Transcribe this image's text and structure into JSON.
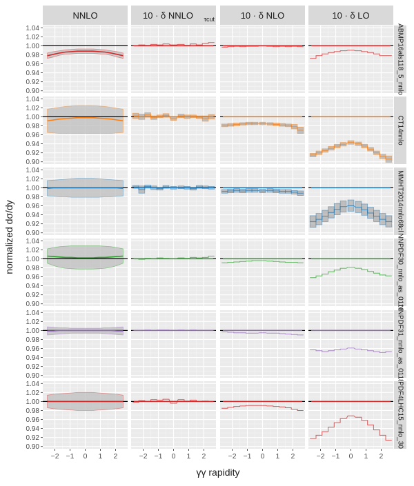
{
  "chart_data": {
    "type": "line",
    "title": "",
    "xlabel": "γγ rapidity",
    "ylabel": "normalized dσ/dy",
    "xlim": [
      -2.8,
      2.8
    ],
    "ylim": [
      0.895,
      1.045
    ],
    "x_ticks": [
      -2,
      -1,
      0,
      1,
      2
    ],
    "y_ticks": [
      0.9,
      0.92,
      0.94,
      0.96,
      0.98,
      1.0,
      1.02,
      1.04
    ],
    "x": [
      -2.5,
      -2.1,
      -1.7,
      -1.3,
      -0.9,
      -0.5,
      0,
      0.5,
      0.9,
      1.3,
      1.7,
      2.1,
      2.5
    ],
    "column_headers": [
      "NNLO",
      "10 · δ NNLO",
      "10 · δ NLO",
      "10 · δ LO"
    ],
    "column_header_subscript": "τcut",
    "reference_line": 1.0,
    "grid": true,
    "rows": [
      {
        "pdf": "ABMP16als118_5_nnlo",
        "color": "#d62728",
        "panels": [
          {
            "style": "band",
            "central": [
              0.978,
              0.981,
              0.984,
              0.986,
              0.987,
              0.988,
              0.988,
              0.988,
              0.987,
              0.986,
              0.984,
              0.981,
              0.978
            ],
            "lo": [
              0.972,
              0.975,
              0.979,
              0.981,
              0.982,
              0.983,
              0.983,
              0.983,
              0.982,
              0.981,
              0.979,
              0.975,
              0.972
            ],
            "hi": [
              0.984,
              0.987,
              0.989,
              0.991,
              0.992,
              0.993,
              0.993,
              0.993,
              0.992,
              0.991,
              0.989,
              0.987,
              0.984
            ]
          },
          {
            "style": "step",
            "central": [
              1.0,
              1.002,
              1.001,
              1.003,
              1.002,
              1.004,
              1.002,
              1.003,
              1.001,
              1.004,
              1.002,
              1.005,
              1.007
            ]
          },
          {
            "style": "step",
            "central": [
              0.997,
              0.998,
              0.999,
              0.998,
              0.999,
              0.999,
              1.0,
              0.999,
              0.998,
              0.999,
              0.998,
              0.999,
              0.998
            ]
          },
          {
            "style": "step",
            "central": [
              0.972,
              0.978,
              0.982,
              0.985,
              0.987,
              0.989,
              0.99,
              0.989,
              0.987,
              0.985,
              0.982,
              0.978,
              0.978
            ]
          }
        ]
      },
      {
        "pdf": "CT14nnlo",
        "color": "#ff7f0e",
        "panels": [
          {
            "style": "band",
            "central": [
              0.991,
              0.993,
              0.995,
              0.996,
              0.997,
              0.998,
              0.998,
              0.998,
              0.997,
              0.996,
              0.995,
              0.993,
              0.991
            ],
            "lo": [
              0.965,
              0.964,
              0.963,
              0.963,
              0.963,
              0.963,
              0.963,
              0.963,
              0.963,
              0.963,
              0.963,
              0.964,
              0.965
            ],
            "hi": [
              1.017,
              1.019,
              1.021,
              1.023,
              1.024,
              1.025,
              1.025,
              1.025,
              1.024,
              1.023,
              1.021,
              1.019,
              1.017
            ]
          },
          {
            "style": "step",
            "central": [
              1.002,
              1.0,
              1.004,
              0.998,
              1.001,
              1.003,
              0.996,
              1.002,
              1.0,
              1.001,
              0.999,
              0.996,
              1.0
            ],
            "lo": [
              0.996,
              0.994,
              0.999,
              0.994,
              0.998,
              0.999,
              0.992,
              0.998,
              0.996,
              0.998,
              0.996,
              0.99,
              0.995
            ],
            "hi": [
              1.008,
              1.006,
              1.009,
              1.002,
              1.004,
              1.007,
              1.0,
              1.006,
              1.004,
              1.004,
              1.002,
              1.002,
              1.005
            ]
          },
          {
            "style": "step",
            "central": [
              0.981,
              0.982,
              0.983,
              0.984,
              0.985,
              0.985,
              0.985,
              0.984,
              0.983,
              0.982,
              0.981,
              0.978,
              0.97
            ],
            "lo": [
              0.978,
              0.979,
              0.98,
              0.981,
              0.982,
              0.982,
              0.982,
              0.981,
              0.98,
              0.979,
              0.978,
              0.973,
              0.963
            ],
            "hi": [
              0.984,
              0.985,
              0.986,
              0.987,
              0.988,
              0.988,
              0.988,
              0.987,
              0.986,
              0.985,
              0.984,
              0.983,
              0.977
            ]
          },
          {
            "style": "step",
            "central": [
              0.915,
              0.92,
              0.925,
              0.93,
              0.935,
              0.939,
              0.943,
              0.94,
              0.935,
              0.928,
              0.92,
              0.912,
              0.906
            ],
            "lo": [
              0.911,
              0.916,
              0.921,
              0.926,
              0.931,
              0.935,
              0.939,
              0.936,
              0.931,
              0.924,
              0.916,
              0.907,
              0.899
            ],
            "hi": [
              0.919,
              0.924,
              0.929,
              0.934,
              0.939,
              0.943,
              0.947,
              0.944,
              0.939,
              0.932,
              0.924,
              0.917,
              0.913
            ]
          }
        ]
      },
      {
        "pdf": "MMHT2014nnlo68cl",
        "color": "#1f77b4",
        "panels": [
          {
            "style": "band",
            "central": [
              0.999,
              1.0,
              1.0,
              1.0,
              1.0,
              1.0,
              1.0,
              1.0,
              1.0,
              1.0,
              1.0,
              1.0,
              0.999
            ],
            "lo": [
              0.982,
              0.981,
              0.98,
              0.98,
              0.979,
              0.979,
              0.979,
              0.979,
              0.979,
              0.98,
              0.98,
              0.981,
              0.982
            ],
            "hi": [
              1.016,
              1.017,
              1.018,
              1.019,
              1.02,
              1.021,
              1.021,
              1.021,
              1.02,
              1.019,
              1.018,
              1.017,
              1.016
            ]
          },
          {
            "style": "step",
            "central": [
              1.002,
              0.996,
              1.003,
              1.0,
              0.998,
              1.002,
              1.0,
              1.001,
              1.0,
              0.998,
              1.002,
              1.001,
              1.0
            ],
            "lo": [
              0.999,
              0.988,
              1.0,
              0.996,
              0.995,
              0.999,
              0.997,
              0.998,
              0.997,
              0.995,
              0.999,
              0.998,
              0.997
            ],
            "hi": [
              1.005,
              1.004,
              1.006,
              1.004,
              1.001,
              1.005,
              1.003,
              1.004,
              1.003,
              1.001,
              1.005,
              1.004,
              1.003
            ]
          },
          {
            "style": "step",
            "central": [
              0.992,
              0.993,
              0.994,
              0.993,
              0.994,
              0.994,
              0.993,
              0.994,
              0.993,
              0.992,
              0.992,
              0.99,
              0.988
            ],
            "lo": [
              0.988,
              0.989,
              0.99,
              0.989,
              0.99,
              0.99,
              0.989,
              0.99,
              0.989,
              0.988,
              0.988,
              0.986,
              0.983
            ],
            "hi": [
              0.996,
              0.997,
              0.998,
              0.997,
              0.998,
              0.998,
              0.997,
              0.998,
              0.997,
              0.996,
              0.996,
              0.994,
              0.993
            ]
          },
          {
            "style": "step",
            "central": [
              0.925,
              0.93,
              0.937,
              0.945,
              0.952,
              0.958,
              0.96,
              0.957,
              0.951,
              0.944,
              0.937,
              0.93,
              0.925
            ],
            "lo": [
              0.912,
              0.918,
              0.925,
              0.933,
              0.94,
              0.946,
              0.948,
              0.945,
              0.939,
              0.932,
              0.925,
              0.918,
              0.913
            ],
            "hi": [
              0.938,
              0.943,
              0.95,
              0.958,
              0.965,
              0.971,
              0.973,
              0.97,
              0.964,
              0.957,
              0.95,
              0.943,
              0.938
            ]
          }
        ]
      },
      {
        "pdf": "NNPDF30_nnlo_as_0118",
        "color": "#2ca02c",
        "panels": [
          {
            "style": "band",
            "central": [
              1.006,
              1.005,
              1.004,
              1.003,
              1.003,
              1.002,
              1.002,
              1.002,
              1.003,
              1.003,
              1.004,
              1.005,
              1.006
            ],
            "lo": [
              0.99,
              0.985,
              0.981,
              0.979,
              0.978,
              0.977,
              0.977,
              0.977,
              0.978,
              0.979,
              0.981,
              0.985,
              0.99
            ],
            "hi": [
              1.022,
              1.025,
              1.027,
              1.028,
              1.029,
              1.029,
              1.029,
              1.029,
              1.029,
              1.028,
              1.027,
              1.025,
              1.022
            ]
          },
          {
            "style": "step",
            "central": [
              1.0,
              0.999,
              1.001,
              1.0,
              1.002,
              1.001,
              1.0,
              1.002,
              1.001,
              1.003,
              1.002,
              1.003,
              1.006
            ]
          },
          {
            "style": "step",
            "central": [
              0.991,
              0.992,
              0.993,
              0.994,
              0.995,
              0.996,
              0.996,
              0.995,
              0.994,
              0.993,
              0.992,
              0.992,
              0.991
            ]
          },
          {
            "style": "step",
            "central": [
              0.958,
              0.962,
              0.966,
              0.971,
              0.975,
              0.979,
              0.981,
              0.979,
              0.976,
              0.972,
              0.968,
              0.964,
              0.962
            ]
          }
        ]
      },
      {
        "pdf": "NNPDF31_nnlo_as_0118",
        "color": "#9467bd",
        "panels": [
          {
            "style": "band",
            "central": [
              0.999,
              0.999,
              1.0,
              1.0,
              1.0,
              1.0,
              1.0,
              1.0,
              1.0,
              1.0,
              1.0,
              0.999,
              0.999
            ],
            "lo": [
              0.99,
              0.991,
              0.992,
              0.993,
              0.994,
              0.994,
              0.994,
              0.994,
              0.994,
              0.993,
              0.992,
              0.991,
              0.99
            ],
            "hi": [
              1.008,
              1.007,
              1.006,
              1.006,
              1.005,
              1.005,
              1.005,
              1.005,
              1.005,
              1.006,
              1.006,
              1.007,
              1.008
            ]
          },
          {
            "style": "step",
            "central": [
              1.0,
              1.0,
              1.001,
              1.0,
              1.001,
              1.001,
              1.0,
              1.001,
              1.0,
              1.001,
              1.0,
              1.0,
              1.0
            ]
          },
          {
            "style": "step",
            "central": [
              0.997,
              0.996,
              0.995,
              0.995,
              0.994,
              0.994,
              0.995,
              0.994,
              0.994,
              0.993,
              0.992,
              0.991,
              0.99
            ]
          },
          {
            "style": "step",
            "central": [
              0.957,
              0.955,
              0.953,
              0.955,
              0.957,
              0.959,
              0.961,
              0.959,
              0.957,
              0.955,
              0.953,
              0.951,
              0.953
            ]
          }
        ]
      },
      {
        "pdf": "PDF4LHC15_nnlo_30",
        "color": "#d62728",
        "panels": [
          {
            "style": "band",
            "central": [
              1.0,
              1.0,
              1.0,
              1.0,
              1.0,
              1.0,
              1.0,
              1.0,
              1.0,
              1.0,
              1.0,
              1.0,
              1.0
            ],
            "lo": [
              0.986,
              0.984,
              0.983,
              0.982,
              0.981,
              0.98,
              0.98,
              0.98,
              0.981,
              0.982,
              0.983,
              0.984,
              0.986
            ],
            "hi": [
              1.014,
              1.016,
              1.017,
              1.018,
              1.019,
              1.02,
              1.02,
              1.02,
              1.019,
              1.018,
              1.017,
              1.016,
              1.014
            ]
          },
          {
            "style": "step",
            "central": [
              0.998,
              1.002,
              1.0,
              1.004,
              1.003,
              1.005,
              0.996,
              1.004,
              1.001,
              1.003,
              1.0,
              1.001,
              1.0
            ]
          },
          {
            "style": "step",
            "central": [
              0.985,
              0.987,
              0.989,
              0.99,
              0.991,
              0.991,
              0.991,
              0.99,
              0.989,
              0.988,
              0.986,
              0.983,
              0.98
            ]
          },
          {
            "style": "step",
            "central": [
              0.918,
              0.925,
              0.933,
              0.943,
              0.953,
              0.962,
              0.968,
              0.965,
              0.958,
              0.948,
              0.937,
              0.925,
              0.914
            ]
          }
        ]
      }
    ]
  }
}
